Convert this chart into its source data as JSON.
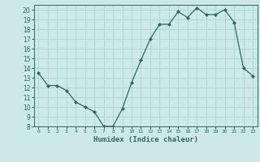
{
  "x": [
    0,
    1,
    2,
    3,
    4,
    5,
    6,
    7,
    8,
    9,
    10,
    11,
    12,
    13,
    14,
    15,
    16,
    17,
    18,
    19,
    20,
    21,
    22,
    23
  ],
  "y": [
    13.5,
    12.2,
    12.2,
    11.7,
    10.5,
    10.0,
    9.5,
    8.0,
    8.0,
    9.8,
    12.5,
    14.8,
    17.0,
    18.5,
    18.5,
    19.8,
    19.2,
    20.2,
    19.5,
    19.5,
    20.0,
    18.7,
    14.0,
    13.2
  ],
  "title": "",
  "xlabel": "Humidex (Indice chaleur)",
  "ylabel": "",
  "xlim": [
    -0.5,
    23.5
  ],
  "ylim": [
    8,
    20.5
  ],
  "yticks": [
    8,
    9,
    10,
    11,
    12,
    13,
    14,
    15,
    16,
    17,
    18,
    19,
    20
  ],
  "xtick_labels": [
    "0",
    "1",
    "2",
    "3",
    "4",
    "5",
    "6",
    "7",
    "8",
    "9",
    "10",
    "11",
    "12",
    "13",
    "14",
    "15",
    "16",
    "17",
    "18",
    "19",
    "20",
    "21",
    "22",
    "23"
  ],
  "line_color": "#2e6b5e",
  "marker": "D",
  "marker_size": 2.0,
  "bg_color": "#cce8e8",
  "grid_color": "#aed4d4",
  "label_color": "#2e6b5e",
  "tick_color": "#2e6b5e",
  "spine_color": "#2e6b5e"
}
